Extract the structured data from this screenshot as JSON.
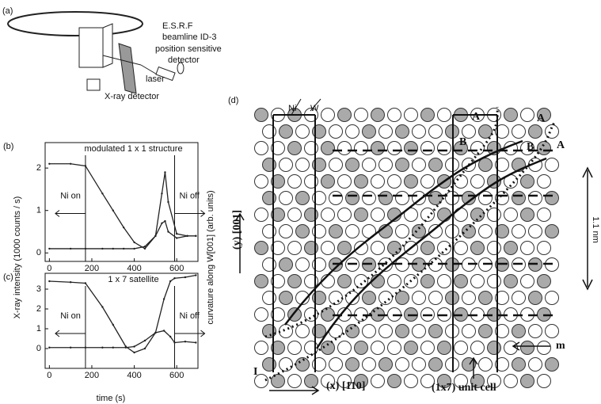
{
  "panel_a": {
    "label": "(a)",
    "texts": [
      "E.S.R.F",
      "beamline ID-3",
      "position sensitive",
      "detector",
      "laser",
      "X-ray detector"
    ]
  },
  "y_axis_label": "X-ray intensity (1000 counts / s)",
  "y2_axis_label": "curvature along W[001] (arb. units)",
  "x_axis_label": "time (s)",
  "chart_data": [
    {
      "type": "line",
      "panel": "(b)",
      "title": "modulated 1 x 1 structure",
      "xlim": [
        -20,
        700
      ],
      "xticks": [
        0,
        200,
        400,
        600
      ],
      "ylim": [
        -0.2,
        2.6
      ],
      "yticks": [
        0,
        1,
        2
      ],
      "events": [
        {
          "x": 170,
          "label": "Ni on"
        },
        {
          "x": 590,
          "label": "Ni off"
        }
      ],
      "series": [
        {
          "color": "#222",
          "x": [
            0,
            100,
            170,
            250,
            300,
            350,
            400,
            450,
            500,
            530,
            545,
            560,
            600,
            650,
            690
          ],
          "values": [
            2.1,
            2.1,
            2.05,
            1.4,
            1.0,
            0.6,
            0.25,
            0.1,
            0.4,
            1.4,
            1.9,
            1.2,
            0.45,
            0.4,
            0.4
          ]
        },
        {
          "color": "#222",
          "x": [
            0,
            100,
            170,
            250,
            300,
            350,
            400,
            450,
            500,
            530,
            545,
            560,
            600,
            650,
            690
          ],
          "values": [
            0.1,
            0.1,
            0.1,
            0.1,
            0.1,
            0.1,
            0.1,
            0.15,
            0.4,
            0.7,
            0.75,
            0.5,
            0.35,
            0.4,
            0.4
          ]
        }
      ]
    },
    {
      "type": "line",
      "panel": "(c)",
      "title": "1 x 7 satellite",
      "xlim": [
        -20,
        700
      ],
      "xticks": [
        0,
        200,
        400,
        600
      ],
      "ylim": [
        -1,
        3.8
      ],
      "yticks": [
        0,
        1,
        2,
        3
      ],
      "events": [
        {
          "x": 170,
          "label": "Ni on"
        },
        {
          "x": 590,
          "label": "Ni off"
        }
      ],
      "series": [
        {
          "color": "#222",
          "x": [
            0,
            100,
            170,
            250,
            300,
            360,
            400,
            450,
            500,
            540,
            570,
            590,
            640,
            690
          ],
          "values": [
            3.4,
            3.35,
            3.3,
            2.1,
            1.2,
            0.1,
            -0.2,
            0.0,
            0.8,
            2.5,
            3.4,
            3.55,
            3.6,
            3.7
          ]
        },
        {
          "color": "#222",
          "x": [
            0,
            100,
            170,
            250,
            300,
            360,
            400,
            450,
            500,
            540,
            570,
            590,
            640,
            690
          ],
          "values": [
            0.05,
            0.05,
            0.05,
            0.05,
            0.05,
            0.05,
            0.1,
            0.4,
            0.8,
            0.9,
            0.6,
            0.3,
            0.35,
            0.3
          ]
        }
      ]
    }
  ],
  "panel_d": {
    "label": "(d)",
    "ni": "Ni",
    "w": "W",
    "a_labels": [
      "A",
      "A",
      "A"
    ],
    "b_labels": [
      "B",
      "B"
    ],
    "y_dir": "(y) [001]",
    "spacing": "1.1 nm",
    "m": "m",
    "i": "I",
    "x_dir": "(x) [1̄10]",
    "cell": "(1x7) unit cell"
  }
}
